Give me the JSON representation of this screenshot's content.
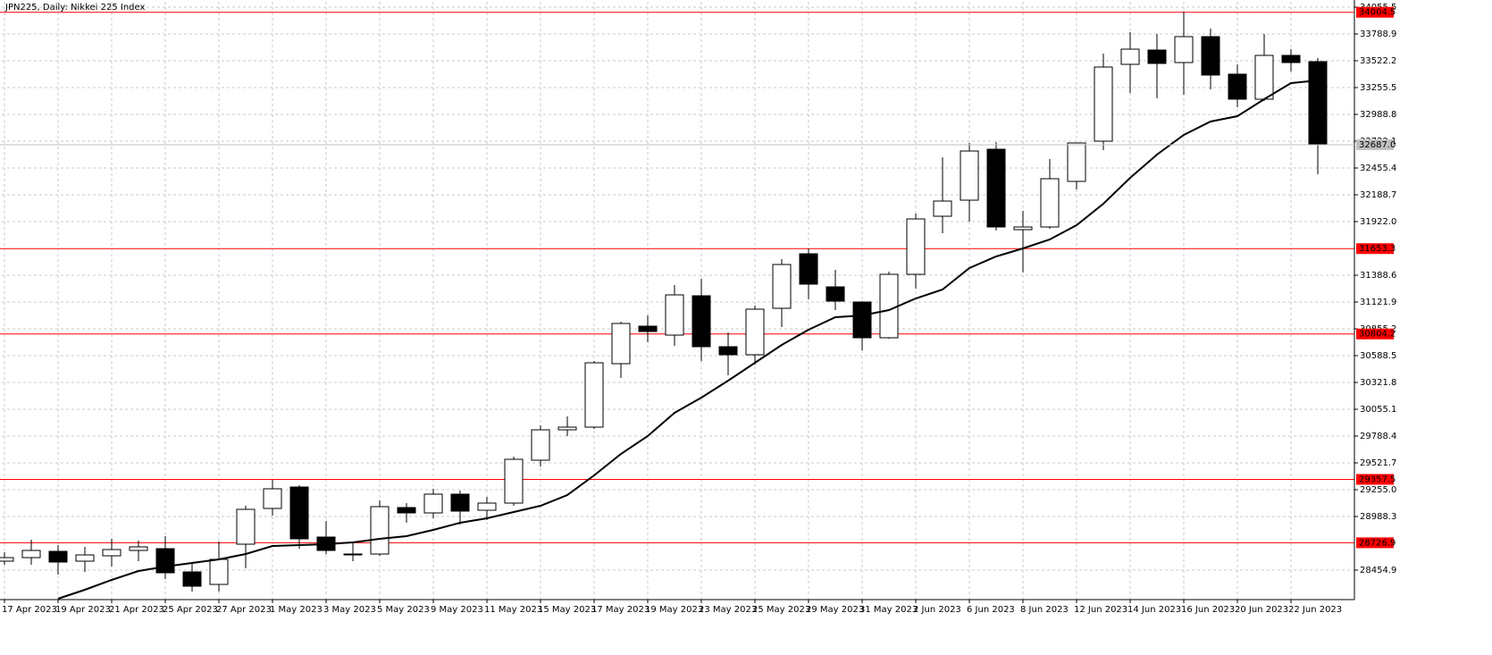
{
  "chart_data": {
    "type": "candlestick",
    "title": "JPN225, Daily:  Nikkei 225 Index",
    "categories": [
      "17 Apr 2023",
      null,
      "19 Apr 2023",
      null,
      "21 Apr 2023",
      null,
      "25 Apr 2023",
      null,
      "27 Apr 2023",
      null,
      "1 May 2023",
      null,
      "3 May 2023",
      null,
      "5 May 2023",
      null,
      "9 May 2023",
      null,
      "11 May 2023",
      null,
      "15 May 2023",
      null,
      "17 May 2023",
      null,
      "19 May 2023",
      null,
      "23 May 2023",
      null,
      "25 May 2023",
      null,
      "29 May 2023",
      null,
      "31 May 2023",
      null,
      "2 Jun 2023",
      null,
      "6 Jun 2023",
      null,
      "8 Jun 2023",
      null,
      "12 Jun 2023",
      null,
      "14 Jun 2023",
      null,
      "16 Jun 2023",
      null,
      "20 Jun 2023",
      null,
      "22 Jun 2023",
      null
    ],
    "open": [
      28543.8,
      28579.3,
      28641.6,
      28543.8,
      28597.1,
      28650.5,
      28668.2,
      28437.1,
      28312.6,
      28712.7,
      29068.3,
      29281.6,
      28783.8,
      28606.0,
      28614.9,
      29077.2,
      29023.8,
      29210.5,
      29050.5,
      29121.6,
      29548.3,
      29850.6,
      29877.3,
      30508.5,
      30881.8,
      30792.9,
      31184.1,
      30677.4,
      30597.4,
      31059.6,
      31601.9,
      31273.0,
      31121.9,
      30766.3,
      31397.5,
      31975.3,
      32135.3,
      32642.1,
      31842.0,
      31868.6,
      32322.0,
      32722.1,
      33486.6,
      33628.9,
      33504.4,
      33762.2,
      33388.8,
      33139.9,
      33575.5,
      33513.3
    ],
    "high": [
      28632.7,
      28757.1,
      28703.8,
      28686.0,
      28766.0,
      28748.2,
      28792.7,
      28526.0,
      28739.4,
      29095.0,
      29352.8,
      29299.4,
      28943.8,
      28730.5,
      29148.3,
      29121.6,
      29263.9,
      29246.1,
      29183.9,
      29583.9,
      29895.1,
      29984.0,
      30535.1,
      30926.3,
      30988.5,
      31290.8,
      31353.0,
      30819.6,
      31086.3,
      31548.6,
      31655.3,
      31441.9,
      31130.8,
      31424.1,
      32002.0,
      32562.1,
      32704.3,
      32713.2,
      32028.7,
      32544.3,
      32704.3,
      33593.3,
      33806.7,
      33788.9,
      34011.1,
      33842.2,
      33486.6,
      33788.9,
      33637.7,
      33548.8
    ],
    "low": [
      28508.2,
      28508.2,
      28410.4,
      28437.1,
      28490.4,
      28543.8,
      28366.0,
      28241.5,
      28241.5,
      28472.7,
      28997.2,
      28668.2,
      28614.9,
      28543.8,
      28597.1,
      28926.0,
      28970.5,
      28908.3,
      28952.7,
      29095.0,
      29486.1,
      29788.4,
      29859.5,
      30366.2,
      30721.8,
      30686.3,
      30535.1,
      30392.9,
      30499.6,
      30873.0,
      31148.5,
      31041.9,
      30641.8,
      30757.4,
      31255.2,
      31806.4,
      31922.0,
      31833.1,
      31415.2,
      31850.9,
      32242.0,
      32633.2,
      33202.1,
      33148.8,
      33184.4,
      33237.7,
      33059.9,
      33122.1,
      33415.5,
      32393.1
    ],
    "close": [
      28579.3,
      28650.5,
      28534.9,
      28606.0,
      28659.3,
      28686.0,
      28428.2,
      28294.9,
      28561.6,
      29059.4,
      29263.9,
      28766.0,
      28650.5,
      28614.9,
      29086.1,
      29023.8,
      29210.5,
      29041.6,
      29121.6,
      29557.2,
      29850.6,
      29877.3,
      30517.4,
      30908.5,
      30828.5,
      31193.0,
      30677.4,
      30597.4,
      31050.8,
      31495.3,
      31299.7,
      31130.8,
      30766.3,
      31397.5,
      31948.6,
      32126.4,
      32624.3,
      31868.6,
      31868.6,
      32348.7,
      32704.3,
      33459.9,
      33637.7,
      33495.5,
      33762.2,
      33379.9,
      33139.9,
      33575.5,
      33504.4,
      32687.0
    ],
    "up_color": "#ffffff",
    "down_color": "#000000",
    "overlay_line": {
      "color": "#000000",
      "values": [
        null,
        null,
        28170.4,
        28259.3,
        28357.1,
        28446.0,
        28490.4,
        28526.0,
        28561.6,
        28614.9,
        28694.9,
        28703.8,
        28712.7,
        28730.5,
        28766.0,
        28792.7,
        28854.9,
        28926.0,
        28970.5,
        29032.7,
        29095.0,
        29201.6,
        29397.2,
        29610.6,
        29788.4,
        30019.5,
        30170.6,
        30339.6,
        30517.4,
        30695.2,
        30846.3,
        30970.7,
        30988.5,
        31041.9,
        31157.4,
        31246.3,
        31459.7,
        31575.3,
        31655.3,
        31744.2,
        31886.4,
        32099.8,
        32357.6,
        32588.7,
        32784.3,
        32917.7,
        32971.0,
        33139.9,
        33299.9,
        33326.6
      ]
    },
    "levels": [
      34004.5,
      31653.3,
      30804.2,
      29357.5,
      28726.9
    ],
    "level_color": "#ff0000",
    "current_price": {
      "value": 32687.0,
      "label": "32687.0"
    },
    "ylim": [
      28161.5,
      34108.9
    ],
    "yticks": [
      34055.5,
      33788.9,
      33522.2,
      33255.5,
      32988.8,
      32722.1,
      32455.4,
      32188.7,
      {
        "value": 31922.0,
        "label": "31922.0"
      },
      31388.6,
      31121.9,
      30855.2,
      30588.5,
      30321.8,
      30055.1,
      29788.4,
      29521.7,
      {
        "value": 29255.0,
        "label": "29255.0"
      },
      28988.3,
      28454.9
    ],
    "grid": true
  }
}
